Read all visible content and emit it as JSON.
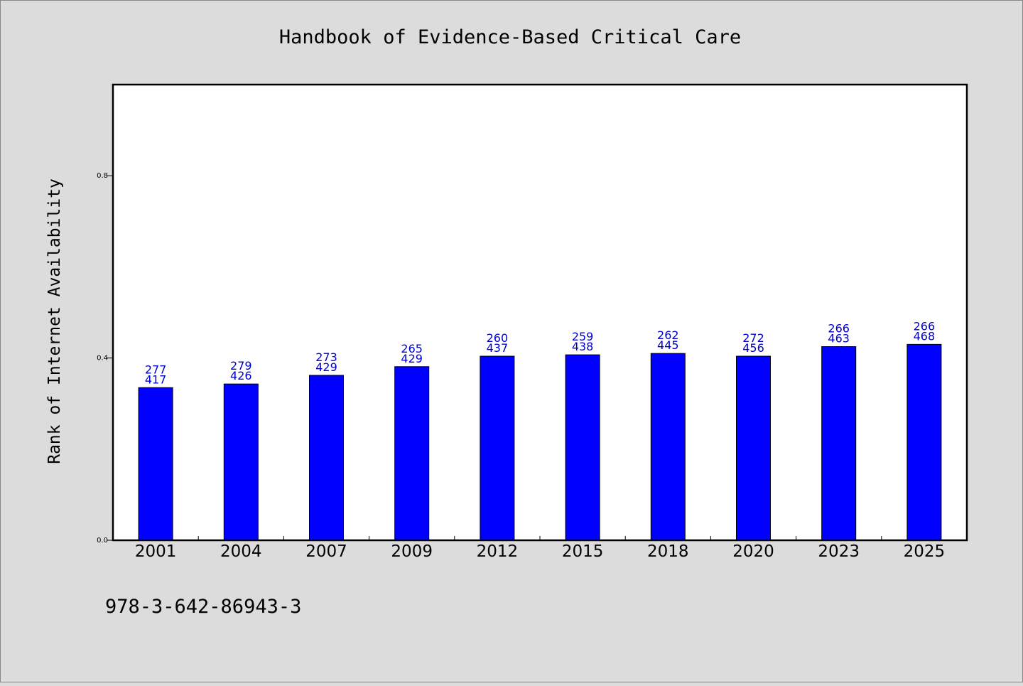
{
  "colors": {
    "background": "#dcdcdc",
    "plot_background": "#ffffff",
    "bar": "#0000ff",
    "bar_label": "#0000cc",
    "axis": "#000000"
  },
  "footer": {
    "isbn": "978-3-642-86943-3"
  },
  "chart_data": {
    "type": "bar",
    "title": "Handbook of Evidence-Based Critical Care",
    "xlabel": "",
    "ylabel": "Rank of Internet Availability",
    "ylim": [
      0,
      1.0
    ],
    "yticks": [
      0.0,
      0.4,
      0.8
    ],
    "ytick_labels": [
      "0.0",
      "0.4",
      "0.8"
    ],
    "grid": false,
    "categories": [
      "2001",
      "2004",
      "2007",
      "2009",
      "2012",
      "2015",
      "2018",
      "2020",
      "2023",
      "2025"
    ],
    "values": [
      0.335,
      0.343,
      0.362,
      0.381,
      0.404,
      0.407,
      0.41,
      0.404,
      0.425,
      0.43
    ],
    "bar_labels_top": [
      "277",
      "279",
      "273",
      "265",
      "260",
      "259",
      "262",
      "272",
      "266",
      "266"
    ],
    "bar_labels_bottom": [
      "417",
      "426",
      "429",
      "429",
      "437",
      "438",
      "445",
      "456",
      "463",
      "468"
    ]
  }
}
